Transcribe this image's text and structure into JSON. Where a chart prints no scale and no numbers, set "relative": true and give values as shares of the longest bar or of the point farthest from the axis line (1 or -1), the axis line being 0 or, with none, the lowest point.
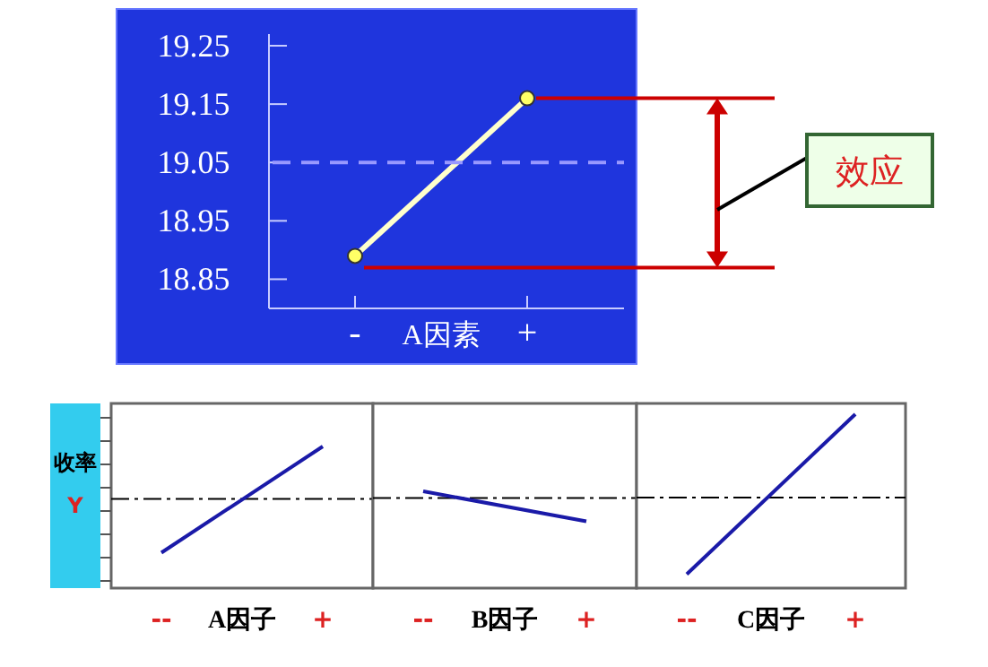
{
  "chart_data": [
    {
      "type": "line",
      "xlabel": "A因素",
      "categories": [
        "-",
        "+"
      ],
      "ylim": [
        18.8,
        19.27
      ],
      "yticks": [
        18.85,
        18.95,
        19.05,
        19.15,
        19.25
      ],
      "grid": false,
      "marker": "circle",
      "series": [
        {
          "color": "#ffffcc",
          "values": [
            18.89,
            19.16
          ]
        }
      ],
      "ref_lines": [
        {
          "axis": "y",
          "value": 19.05,
          "color": "#9999ff",
          "line_style": "dashed"
        },
        {
          "axis": "y",
          "value": 18.87,
          "color": "#cc0000"
        },
        {
          "axis": "y",
          "value": 19.16,
          "color": "#cc0000"
        }
      ],
      "annotations": [
        "效应"
      ]
    },
    {
      "type": "line",
      "relative": true,
      "ylabel": "收率 Y",
      "xlabel": "A因子",
      "categories": [
        "--",
        "+"
      ],
      "series": [
        {
          "color": "#1a1aa8",
          "values": [
            0.25,
            1
          ]
        }
      ],
      "ref_lines": [
        {
          "axis": "y",
          "value": 0.63,
          "color": "#000000",
          "line_style": "dashdot"
        }
      ]
    },
    {
      "type": "line",
      "relative": true,
      "xlabel": "B因子",
      "categories": [
        "--",
        "+"
      ],
      "series": [
        {
          "color": "#1a1aa8",
          "values": [
            1,
            0.69
          ]
        }
      ],
      "ref_lines": [
        {
          "axis": "y",
          "value": 0.93,
          "color": "#000000",
          "line_style": "dashdot"
        }
      ]
    },
    {
      "type": "line",
      "relative": true,
      "xlabel": "C因子",
      "categories": [
        "--",
        "+"
      ],
      "series": [
        {
          "color": "#1a1aa8",
          "values": [
            0.08,
            1
          ]
        }
      ],
      "ref_lines": [
        {
          "axis": "y",
          "value": 0.52,
          "color": "#000000",
          "line_style": "dashdot"
        }
      ]
    }
  ]
}
